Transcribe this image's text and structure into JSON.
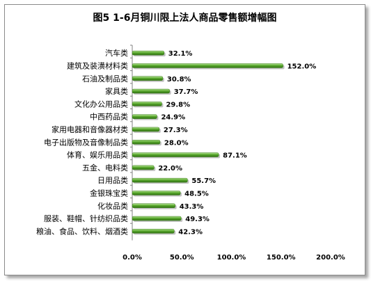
{
  "chart_data": {
    "type": "bar",
    "orientation": "horizontal",
    "title": "图5 1-6月铜川限上法人商品零售额增幅图",
    "categories": [
      "汽车类",
      "建筑及装潢材料类",
      "石油及制品类",
      "家具类",
      "文化办公用品类",
      "中西药品类",
      "家用电器和音像器材类",
      "电子出版物及音像制品类",
      "体育、娱乐用品类",
      "五金、电料类",
      "日用品类",
      "金银珠宝类",
      "化妆品类",
      "服装、鞋帽、针纺织品类",
      "粮油、食品、饮料、烟酒类"
    ],
    "values": [
      32.1,
      152.0,
      30.8,
      37.7,
      29.8,
      24.9,
      27.3,
      28.0,
      87.1,
      22.0,
      55.7,
      48.5,
      43.3,
      49.3,
      42.3
    ],
    "value_labels": [
      "32.1%",
      "152.0%",
      "30.8%",
      "37.7%",
      "29.8%",
      "24.9%",
      "27.3%",
      "28.0%",
      "87.1%",
      "22.0%",
      "55.7%",
      "48.5%",
      "43.3%",
      "49.3%",
      "42.3%"
    ],
    "xlim": [
      0,
      200
    ],
    "xticks": [
      "0.0%",
      "50.0%",
      "100.0%",
      "150.0%",
      "200.0%"
    ],
    "grid": false,
    "legend": "none",
    "bar_color": "#4f9a2a"
  }
}
